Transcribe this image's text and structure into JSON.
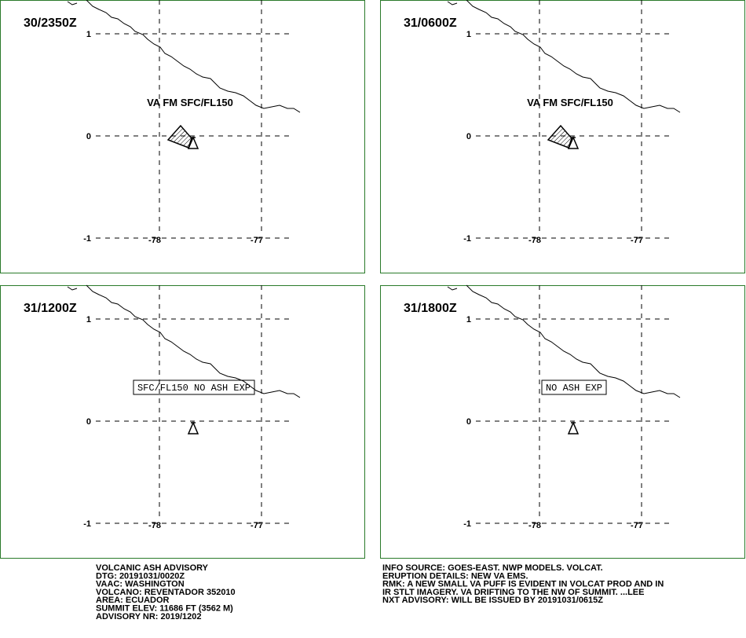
{
  "panels": [
    {
      "time": "30/2350Z",
      "label": "VA FM SFC/FL150"
    },
    {
      "time": "31/0600Z",
      "label": "VA FM SFC/FL150"
    },
    {
      "time": "31/1200Z",
      "label": "SFC/FL150 NO ASH EXP"
    },
    {
      "time": "31/1800Z",
      "label": "NO ASH EXP"
    }
  ],
  "map": {
    "lat_labels": [
      "1",
      "0",
      "-1"
    ],
    "lon_labels": [
      "-78",
      "-77"
    ]
  },
  "advisory": {
    "left": [
      "VOLCANIC ASH ADVISORY",
      "DTG: 20191031/0020Z",
      "VAAC: WASHINGTON",
      "VOLCANO: REVENTADOR 352010",
      "AREA: ECUADOR",
      "SUMMIT ELEV: 11686 FT (3562 M)",
      "ADVISORY NR: 2019/1202"
    ],
    "right": [
      "INFO SOURCE: GOES-EAST. NWP MODELS. VOLCAT.",
      "ERUPTION DETAILS: NEW VA EMS.",
      "RMK: A NEW SMALL VA PUFF IS EVIDENT IN VOLCAT PROD AND IN",
      "IR STLT IMAGERY. VA DRIFTING TO THE NW OF SUMMIT. ...LEE",
      "NXT ADVISORY: WILL BE ISSUED BY 20191031/0615Z"
    ]
  }
}
